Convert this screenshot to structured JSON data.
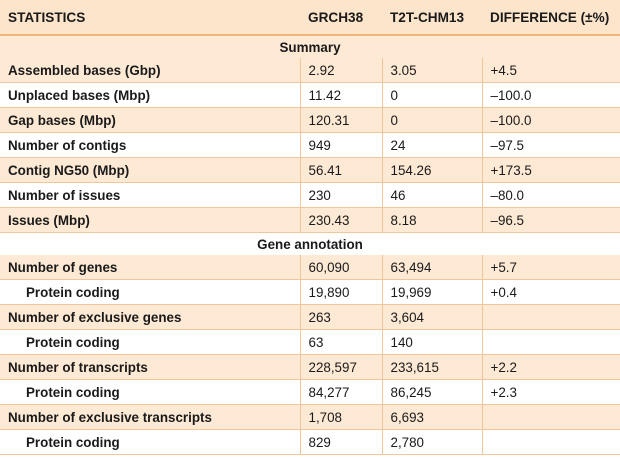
{
  "header": {
    "statistics": "STATISTICS",
    "grch38": "GRCH38",
    "t2t": "T2T-CHM13",
    "difference": "DIFFERENCE (±%)"
  },
  "sections": {
    "summary": "Summary",
    "gene_annotation": "Gene annotation"
  },
  "summary_rows": [
    {
      "label": "Assembled bases (Gbp)",
      "grch38": "2.92",
      "t2t": "3.05",
      "diff": "+4.5"
    },
    {
      "label": "Unplaced bases (Mbp)",
      "grch38": "11.42",
      "t2t": "0",
      "diff": "–100.0"
    },
    {
      "label": "Gap bases (Mbp)",
      "grch38": "120.31",
      "t2t": "0",
      "diff": "–100.0"
    },
    {
      "label": "Number of contigs",
      "grch38": "949",
      "t2t": "24",
      "diff": "–97.5"
    },
    {
      "label": "Contig NG50 (Mbp)",
      "grch38": "56.41",
      "t2t": "154.26",
      "diff": "+173.5"
    },
    {
      "label": "Number of issues",
      "grch38": "230",
      "t2t": "46",
      "diff": "–80.0"
    },
    {
      "label": "Issues (Mbp)",
      "grch38": "230.43",
      "t2t": "8.18",
      "diff": "–96.5"
    }
  ],
  "gene_rows": [
    {
      "label": "Number of genes",
      "grch38": "60,090",
      "t2t": "63,494",
      "diff": "+5.7"
    },
    {
      "label": "Protein coding",
      "grch38": "19,890",
      "t2t": "19,969",
      "diff": "+0.4"
    },
    {
      "label": "Number of exclusive genes",
      "grch38": "263",
      "t2t": "3,604",
      "diff": ""
    },
    {
      "label": "Protein coding",
      "grch38": "63",
      "t2t": "140",
      "diff": ""
    },
    {
      "label": "Number of transcripts",
      "grch38": "228,597",
      "t2t": "233,615",
      "diff": "+2.2"
    },
    {
      "label": "Protein coding",
      "grch38": "84,277",
      "t2t": "86,245",
      "diff": "+2.3"
    },
    {
      "label": "Number of exclusive transcripts",
      "grch38": "1,708",
      "t2t": "6,693",
      "diff": ""
    },
    {
      "label": "Protein coding",
      "grch38": "829",
      "t2t": "2,780",
      "diff": ""
    }
  ],
  "colors": {
    "header_bg": "#fce5cb",
    "row_shade": "#fde9d4",
    "rule": "#f3c59a"
  }
}
